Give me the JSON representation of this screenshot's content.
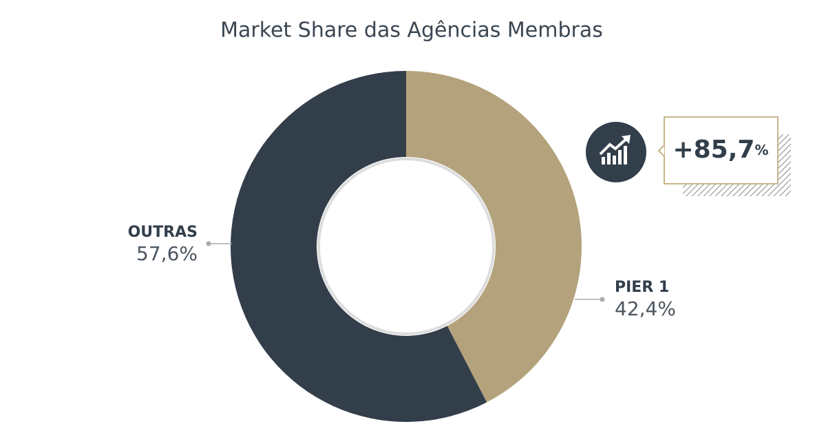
{
  "chart_data": {
    "type": "donut",
    "title": "Market Share das Agências Membras",
    "categories": [
      "PIER 1",
      "OUTRAS"
    ],
    "values": [
      42.4,
      57.6
    ],
    "value_labels": [
      "42,4%",
      "57,6%"
    ],
    "colors": [
      "#b3a27b",
      "#323e4a"
    ],
    "annotation": "+85,7%"
  }
}
